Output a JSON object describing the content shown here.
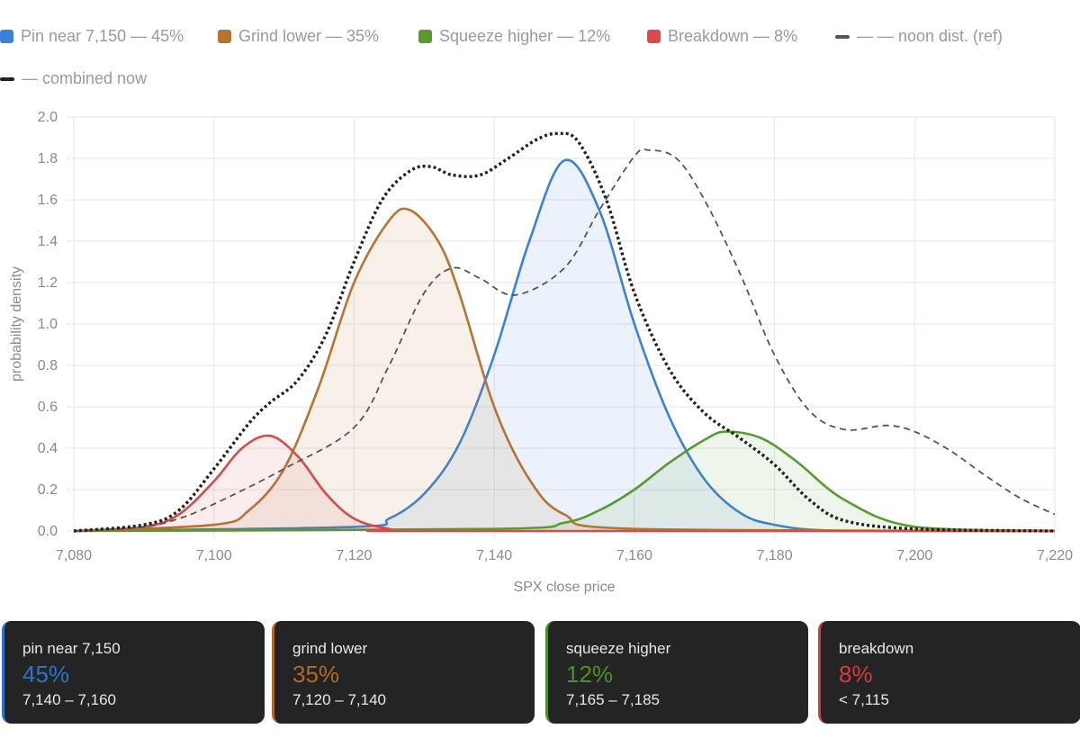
{
  "legend": [
    {
      "label": "Pin near 7,150 — 45%",
      "color": "#3b82d6",
      "kind": "box"
    },
    {
      "label": "Grind lower — 35%",
      "color": "#b87333",
      "kind": "box"
    },
    {
      "label": "Squeeze higher — 12%",
      "color": "#5a9a2f",
      "kind": "box"
    },
    {
      "label": "Breakdown — 8%",
      "color": "#d94a4a",
      "kind": "box"
    },
    {
      "label": "— — noon dist. (ref)",
      "color": "#555555",
      "kind": "dash"
    },
    {
      "label": "— combined now",
      "color": "#222222",
      "kind": "dash"
    }
  ],
  "chart_data": {
    "type": "area",
    "xlabel": "SPX close price",
    "ylabel": "probability density",
    "xlim": [
      7080,
      7220
    ],
    "ylim": [
      0,
      2.0
    ],
    "x_ticks": [
      "7,080",
      "7,100",
      "7,120",
      "7,140",
      "7,160",
      "7,180",
      "7,200",
      "7,220"
    ],
    "y_ticks": [
      "0.0",
      "0.2",
      "0.4",
      "0.6",
      "0.8",
      "1.0",
      "1.2",
      "1.4",
      "1.6",
      "1.8",
      "2.0"
    ],
    "grid": true,
    "legend_position": "top",
    "series": [
      {
        "name": "Pin near 7,150 — 45%",
        "style": "filled",
        "color": "#3b82d6",
        "x": [
          7080,
          7120,
          7125,
          7130,
          7135,
          7140,
          7145,
          7150,
          7155,
          7160,
          7165,
          7170,
          7175,
          7180,
          7190,
          7220
        ],
        "y": [
          0.0,
          0.02,
          0.06,
          0.18,
          0.42,
          0.85,
          1.4,
          1.79,
          1.55,
          1.0,
          0.55,
          0.25,
          0.09,
          0.03,
          0.0,
          0.0
        ]
      },
      {
        "name": "Grind lower — 35%",
        "style": "filled",
        "color": "#b87333",
        "x": [
          7080,
          7100,
          7105,
          7110,
          7115,
          7120,
          7125,
          7128,
          7132,
          7135,
          7140,
          7145,
          7150,
          7160,
          7220
        ],
        "y": [
          0.0,
          0.03,
          0.1,
          0.3,
          0.7,
          1.2,
          1.5,
          1.55,
          1.4,
          1.15,
          0.6,
          0.25,
          0.08,
          0.01,
          0.0
        ]
      },
      {
        "name": "Squeeze higher — 12%",
        "style": "filled",
        "color": "#5a9a2f",
        "x": [
          7080,
          7140,
          7150,
          7155,
          7160,
          7165,
          7170,
          7173,
          7178,
          7183,
          7190,
          7200,
          7220
        ],
        "y": [
          0.0,
          0.01,
          0.04,
          0.1,
          0.2,
          0.33,
          0.44,
          0.48,
          0.45,
          0.34,
          0.15,
          0.02,
          0.0
        ]
      },
      {
        "name": "Breakdown — 8%",
        "style": "filled",
        "color": "#d94a4a",
        "x": [
          7080,
          7090,
          7095,
          7100,
          7104,
          7108,
          7112,
          7116,
          7120,
          7125,
          7130,
          7220
        ],
        "y": [
          0.0,
          0.02,
          0.08,
          0.24,
          0.4,
          0.46,
          0.36,
          0.18,
          0.06,
          0.01,
          0.0,
          0.0
        ]
      },
      {
        "name": "— — noon dist. (ref)",
        "style": "dashed",
        "color": "#555555",
        "x": [
          7080,
          7090,
          7095,
          7100,
          7110,
          7120,
          7125,
          7130,
          7134,
          7138,
          7143,
          7150,
          7155,
          7160,
          7162,
          7166,
          7170,
          7175,
          7180,
          7185,
          7190,
          7196,
          7200,
          7205,
          7210,
          7215,
          7220
        ],
        "y": [
          0.0,
          0.02,
          0.06,
          0.13,
          0.3,
          0.5,
          0.8,
          1.15,
          1.27,
          1.22,
          1.14,
          1.27,
          1.55,
          1.81,
          1.84,
          1.8,
          1.6,
          1.25,
          0.85,
          0.58,
          0.49,
          0.51,
          0.48,
          0.39,
          0.27,
          0.16,
          0.08
        ]
      },
      {
        "name": "— combined now",
        "style": "dotted",
        "color": "#222222",
        "x": [
          7080,
          7090,
          7095,
          7100,
          7105,
          7108,
          7112,
          7116,
          7120,
          7124,
          7128,
          7131,
          7134,
          7138,
          7142,
          7146,
          7149,
          7152,
          7156,
          7160,
          7165,
          7170,
          7175,
          7180,
          7185,
          7190,
          7200,
          7220
        ],
        "y": [
          0.0,
          0.03,
          0.1,
          0.3,
          0.52,
          0.62,
          0.73,
          0.95,
          1.3,
          1.6,
          1.74,
          1.76,
          1.72,
          1.72,
          1.8,
          1.89,
          1.92,
          1.88,
          1.6,
          1.15,
          0.78,
          0.57,
          0.45,
          0.32,
          0.15,
          0.05,
          0.01,
          0.0
        ]
      }
    ]
  },
  "cards": [
    {
      "title": "pin near 7,150",
      "pct": "45%",
      "range": "7,140 – 7,160",
      "color": "#2e72c9"
    },
    {
      "title": "grind lower",
      "pct": "35%",
      "range": "7,120 – 7,140",
      "color": "#b06a25"
    },
    {
      "title": "squeeze higher",
      "pct": "12%",
      "range": "7,165 – 7,185",
      "color": "#4f8f28"
    },
    {
      "title": "breakdown",
      "pct": "8%",
      "range": "< 7,115",
      "color": "#d23c3c"
    }
  ]
}
